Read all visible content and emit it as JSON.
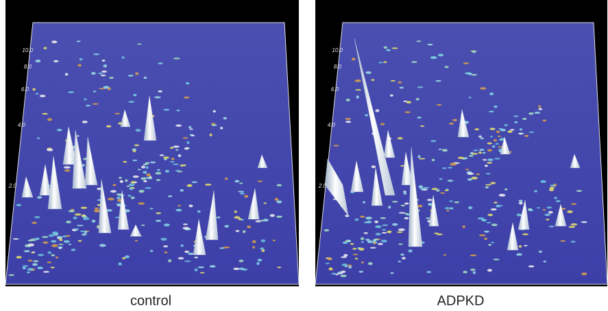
{
  "panels": [
    {
      "caption": "control",
      "axis_labels": [
        "10.0",
        "8.0",
        "6.0",
        "4.0",
        "2.0"
      ]
    },
    {
      "caption": "ADPKD",
      "axis_labels": [
        "10.0",
        "8.0",
        "6.0",
        "4.0",
        "2.0"
      ]
    }
  ]
}
